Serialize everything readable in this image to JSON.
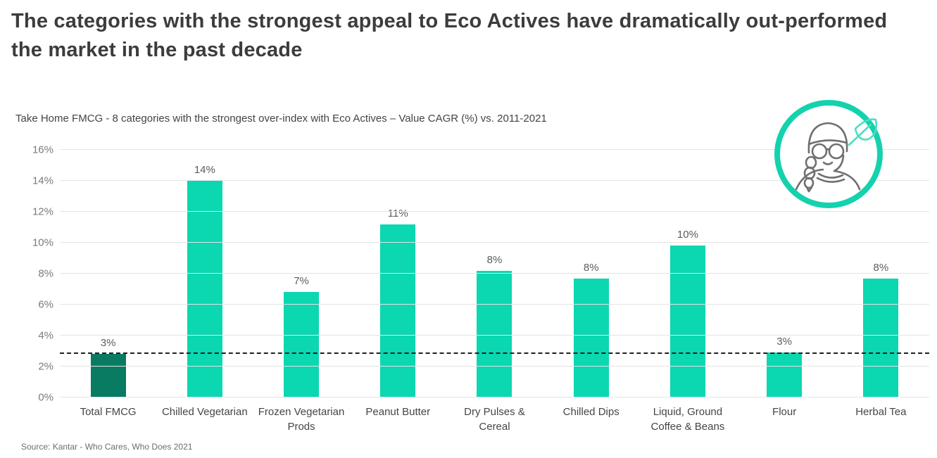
{
  "header": {
    "title": "The categories with the strongest appeal to Eco Actives have dramatically out-performed the market in the past decade"
  },
  "source": "Source: Kantar - Who Cares, Who Does 2021",
  "icon": {
    "name": "eco-actives-badge",
    "description": "person-with-braid-and-leaf"
  },
  "colors": {
    "bar": "#0bd7b1",
    "bar_highlight": "#097b63",
    "gridline": "#e4e4e4",
    "reference_line": "#202020",
    "badge_ring": "#14d2ae",
    "badge_leaf": "#4fdec0",
    "badge_person": "#6f6f6f"
  },
  "chart_data": {
    "type": "bar",
    "title": "Take Home FMCG - 8 categories with the strongest over-index with Eco Actives – Value CAGR (%) vs. 2011-2021",
    "xlabel": "",
    "ylabel": "Value CAGR (%)",
    "categories": [
      "Total FMCG",
      "Chilled Vegetarian",
      "Frozen Vegetarian Prods",
      "Peanut Butter",
      "Dry Pulses & Cereal",
      "Chilled Dips",
      "Liquid, Ground Coffee & Beans",
      "Flour",
      "Herbal Tea"
    ],
    "values": [
      2.8,
      14.0,
      6.8,
      11.2,
      8.2,
      7.7,
      9.8,
      2.9,
      7.7
    ],
    "labels": [
      "3%",
      "14%",
      "7%",
      "11%",
      "8%",
      "8%",
      "10%",
      "3%",
      "8%"
    ],
    "highlight_index": 0,
    "reference_line": {
      "value": 2.8,
      "style": "dashed",
      "meaning": "Total FMCG benchmark"
    },
    "ylim": [
      0,
      16
    ],
    "ytick_values": [
      0,
      2,
      4,
      6,
      8,
      10,
      12,
      14,
      16
    ],
    "yticks": [
      "0%",
      "2%",
      "4%",
      "6%",
      "8%",
      "10%",
      "12%",
      "14%",
      "16%"
    ],
    "grid": true,
    "legend": false
  }
}
